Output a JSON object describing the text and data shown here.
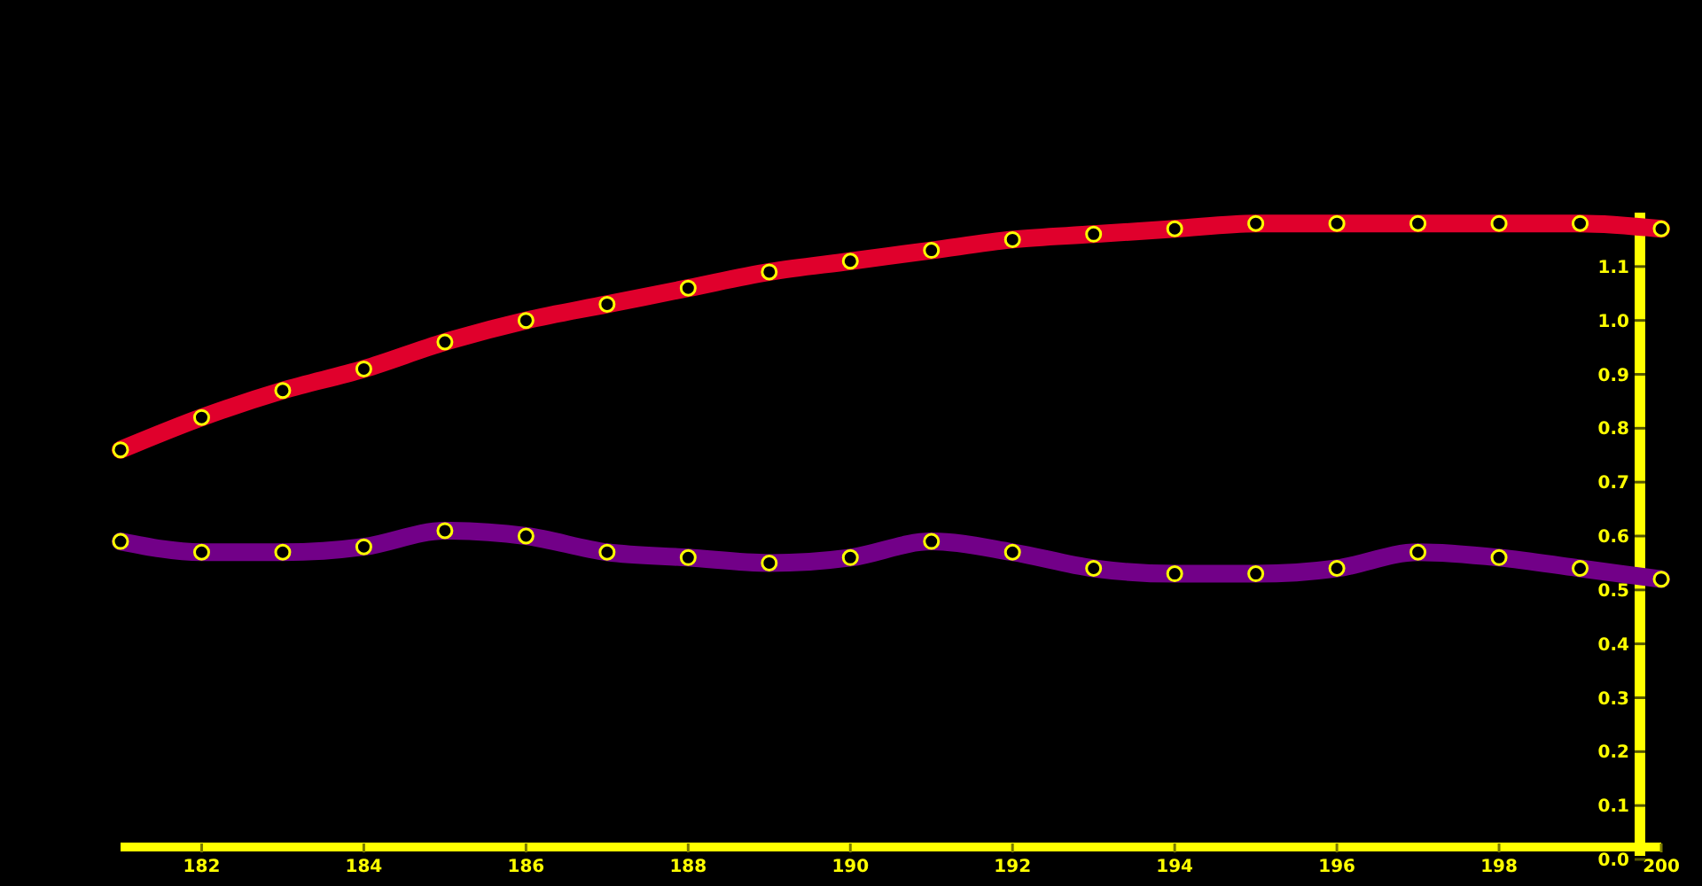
{
  "chart_data": {
    "type": "line",
    "x": [
      181,
      182,
      183,
      184,
      185,
      186,
      187,
      188,
      189,
      190,
      191,
      192,
      193,
      194,
      195,
      196,
      197,
      198,
      199,
      200
    ],
    "series": [
      {
        "color": "#e0002c",
        "values": [
          0.76,
          0.82,
          0.87,
          0.91,
          0.96,
          1.0,
          1.03,
          1.06,
          1.09,
          1.11,
          1.13,
          1.15,
          1.16,
          1.17,
          1.18,
          1.18,
          1.18,
          1.18,
          1.18,
          1.17
        ]
      },
      {
        "color": "#720088",
        "values": [
          0.59,
          0.57,
          0.57,
          0.58,
          0.61,
          0.6,
          0.57,
          0.56,
          0.55,
          0.56,
          0.59,
          0.57,
          0.54,
          0.53,
          0.53,
          0.54,
          0.57,
          0.56,
          0.54,
          0.52
        ]
      }
    ],
    "xlim": [
      181,
      200
    ],
    "xticks": [
      182,
      184,
      186,
      188,
      190,
      192,
      194,
      196,
      198,
      200
    ],
    "ylim": [
      0,
      1.2
    ],
    "yticks": [
      {
        "value": 0,
        "label": "0.0"
      },
      0.1,
      0.2,
      0.3,
      0.4,
      0.5,
      0.6,
      0.7,
      0.8,
      0.9,
      {
        "value": 1,
        "label": "1.0"
      },
      1.1
    ],
    "marker": "circle",
    "line_style": "solid"
  }
}
